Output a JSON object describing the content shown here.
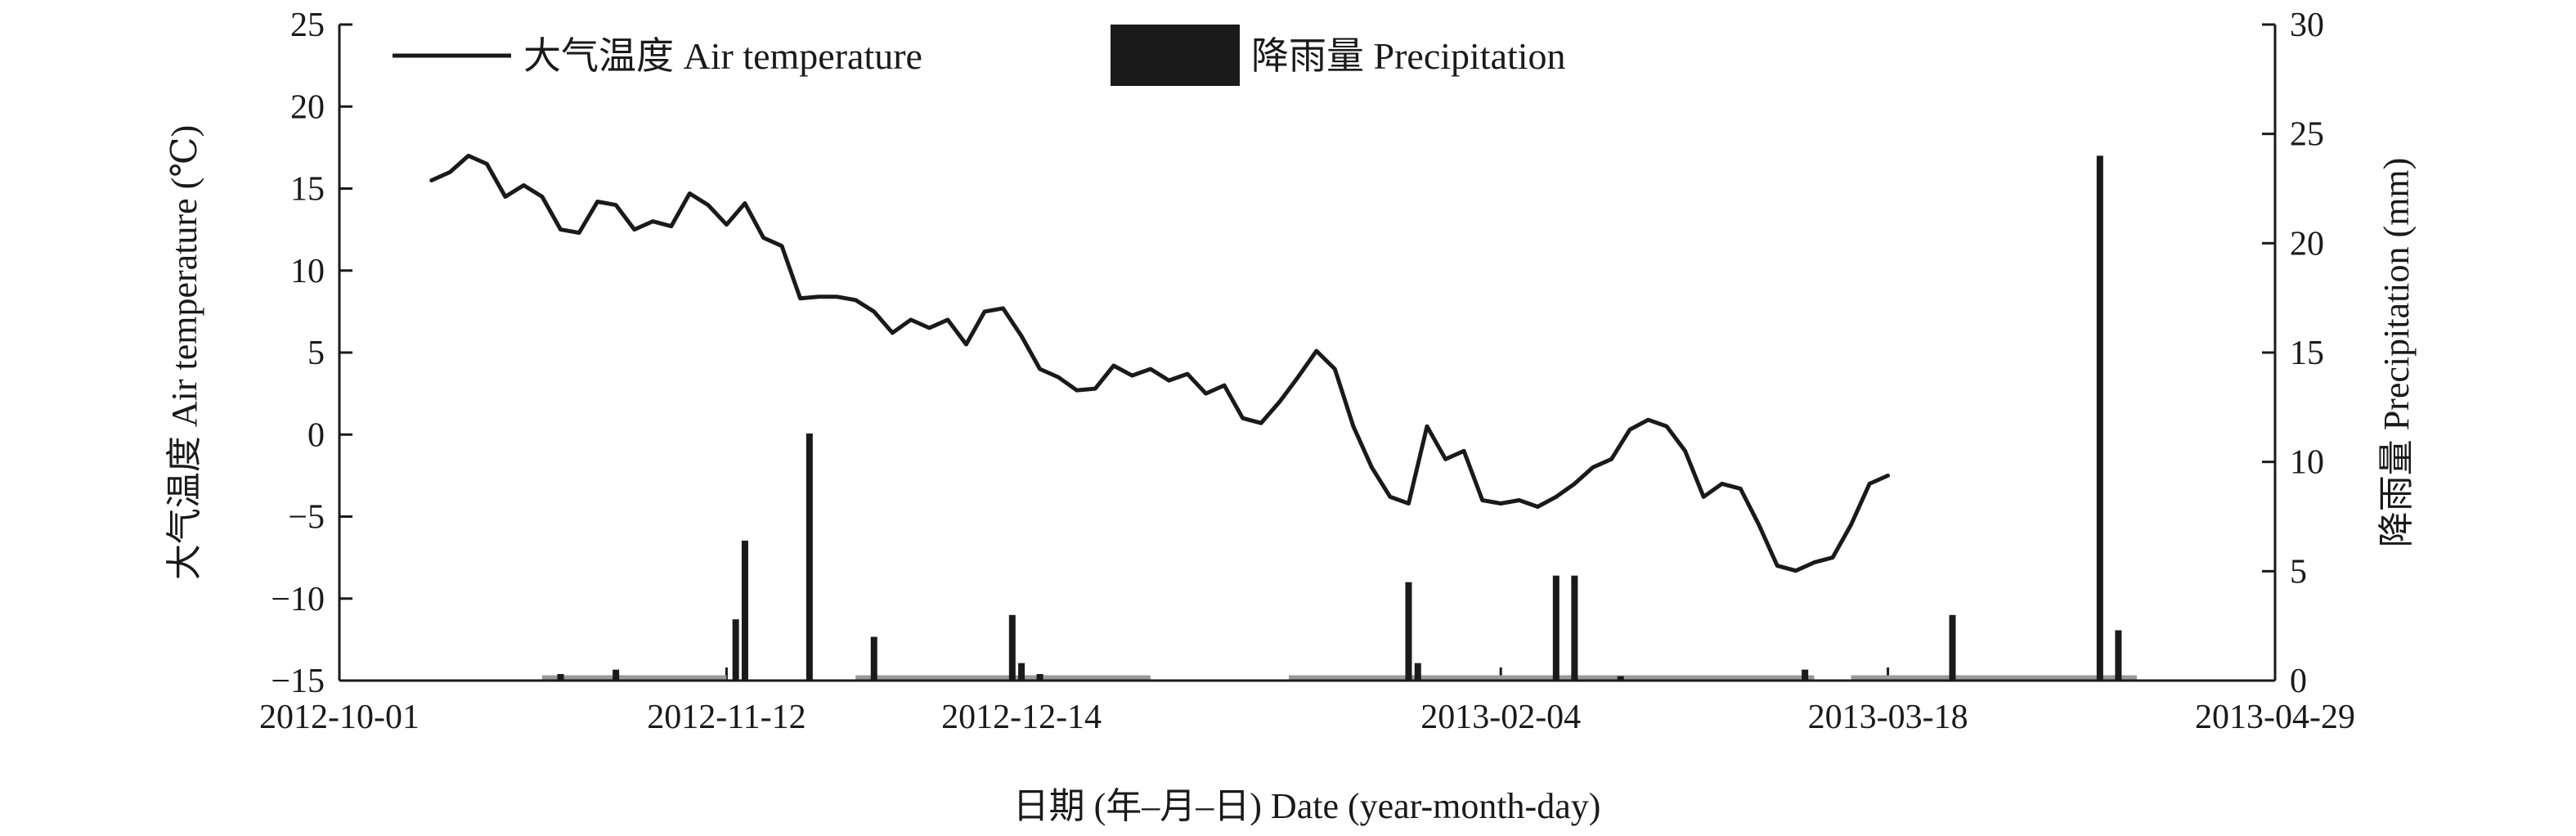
{
  "chart_data": {
    "type": "line",
    "x_type": "date",
    "x_ticks": [
      "2012-10-01",
      "2012-11-12",
      "2012-12-14",
      "2013-02-04",
      "2013-03-18",
      "2013-04-29"
    ],
    "xlim": [
      "2012-10-01",
      "2013-04-29"
    ],
    "xlabel": "日期 (年–月–日) Date (year-month-day)",
    "y_left": {
      "label": "大气温度 Air temperature (℃)",
      "ticks": [
        25,
        20,
        15,
        10,
        5,
        0,
        -5,
        -10,
        -15
      ],
      "tick_labels": [
        "25",
        "20",
        "15",
        "10",
        "5",
        "0",
        "−5",
        "−10",
        "−15"
      ],
      "ylim": [
        -15,
        25
      ]
    },
    "y_right": {
      "label": "降雨量 Precipitation (mm)",
      "ticks": [
        30,
        25,
        20,
        15,
        10,
        5,
        0
      ],
      "tick_labels": [
        "30",
        "25",
        "20",
        "15",
        "10",
        "5",
        "0"
      ],
      "ylim": [
        0,
        30
      ]
    },
    "legend": {
      "placement": "top-left",
      "items": [
        {
          "label": "大气温度 Air temperature",
          "kind": "line"
        },
        {
          "label": "降雨量 Precipitation",
          "kind": "bar"
        }
      ]
    },
    "grid": false,
    "colors": {
      "temperature": "#1a1a1a",
      "precipitation": "#1a1a1a",
      "zero_precip": "#9a9a9a"
    },
    "series": [
      {
        "id": "temperature",
        "axis": "left",
        "type": "line",
        "points": [
          [
            "2012-10-11",
            15.5
          ],
          [
            "2012-10-13",
            16.0
          ],
          [
            "2012-10-15",
            17.0
          ],
          [
            "2012-10-17",
            16.5
          ],
          [
            "2012-10-19",
            14.5
          ],
          [
            "2012-10-21",
            15.2
          ],
          [
            "2012-10-23",
            14.5
          ],
          [
            "2012-10-25",
            12.5
          ],
          [
            "2012-10-27",
            12.3
          ],
          [
            "2012-10-29",
            14.2
          ],
          [
            "2012-10-31",
            14.0
          ],
          [
            "2012-11-02",
            12.5
          ],
          [
            "2012-11-04",
            13.0
          ],
          [
            "2012-11-06",
            12.7
          ],
          [
            "2012-11-08",
            14.7
          ],
          [
            "2012-11-10",
            14.0
          ],
          [
            "2012-11-12",
            12.8
          ],
          [
            "2012-11-14",
            14.1
          ],
          [
            "2012-11-16",
            12.0
          ],
          [
            "2012-11-18",
            11.5
          ],
          [
            "2012-11-20",
            8.3
          ],
          [
            "2012-11-22",
            8.4
          ],
          [
            "2012-11-24",
            8.4
          ],
          [
            "2012-11-26",
            8.2
          ],
          [
            "2012-11-28",
            7.5
          ],
          [
            "2012-11-30",
            6.2
          ],
          [
            "2012-12-02",
            7.0
          ],
          [
            "2012-12-04",
            6.5
          ],
          [
            "2012-12-06",
            7.0
          ],
          [
            "2012-12-08",
            5.5
          ],
          [
            "2012-12-10",
            7.5
          ],
          [
            "2012-12-12",
            7.7
          ],
          [
            "2012-12-14",
            6.0
          ],
          [
            "2012-12-16",
            4.0
          ],
          [
            "2012-12-18",
            3.5
          ],
          [
            "2012-12-20",
            2.7
          ],
          [
            "2012-12-22",
            2.8
          ],
          [
            "2012-12-24",
            4.2
          ],
          [
            "2012-12-26",
            3.6
          ],
          [
            "2012-12-28",
            4.0
          ],
          [
            "2012-12-30",
            3.3
          ],
          [
            "2013-01-01",
            3.7
          ],
          [
            "2013-01-03",
            2.5
          ],
          [
            "2013-01-05",
            3.0
          ],
          [
            "2013-01-07",
            1.0
          ],
          [
            "2013-01-09",
            0.7
          ],
          [
            "2013-01-11",
            2.0
          ],
          [
            "2013-01-13",
            3.5
          ],
          [
            "2013-01-15",
            5.1
          ],
          [
            "2013-01-17",
            4.0
          ],
          [
            "2013-01-19",
            0.5
          ],
          [
            "2013-01-21",
            -2.0
          ],
          [
            "2013-01-23",
            -3.8
          ],
          [
            "2013-01-25",
            -4.2
          ],
          [
            "2013-01-27",
            0.5
          ],
          [
            "2013-01-29",
            -1.5
          ],
          [
            "2013-01-31",
            -1.0
          ],
          [
            "2013-02-02",
            -4.0
          ],
          [
            "2013-02-04",
            -4.2
          ],
          [
            "2013-02-06",
            -4.0
          ],
          [
            "2013-02-08",
            -4.4
          ],
          [
            "2013-02-10",
            -3.8
          ],
          [
            "2013-02-12",
            -3.0
          ],
          [
            "2013-02-14",
            -2.0
          ],
          [
            "2013-02-16",
            -1.5
          ],
          [
            "2013-02-18",
            0.3
          ],
          [
            "2013-02-20",
            0.9
          ],
          [
            "2013-02-22",
            0.5
          ],
          [
            "2013-02-24",
            -1.0
          ],
          [
            "2013-02-26",
            -3.8
          ],
          [
            "2013-02-28",
            -3.0
          ],
          [
            "2013-03-02",
            -3.3
          ],
          [
            "2013-03-04",
            -5.5
          ],
          [
            "2013-03-06",
            -8.0
          ],
          [
            "2013-03-08",
            -8.3
          ],
          [
            "2013-03-10",
            -7.8
          ],
          [
            "2013-03-12",
            -7.5
          ],
          [
            "2013-03-14",
            -5.5
          ],
          [
            "2013-03-16",
            -3.0
          ],
          [
            "2013-03-18",
            -2.5
          ]
        ]
      },
      {
        "id": "precipitation",
        "axis": "right",
        "type": "bar",
        "points": [
          [
            "2012-10-25",
            0.3
          ],
          [
            "2012-10-31",
            0.5
          ],
          [
            "2012-11-13",
            2.8
          ],
          [
            "2012-11-14",
            6.4
          ],
          [
            "2012-11-21",
            11.3
          ],
          [
            "2012-11-28",
            2.0
          ],
          [
            "2012-12-13",
            3.0
          ],
          [
            "2012-12-14",
            0.8
          ],
          [
            "2012-12-16",
            0.3
          ],
          [
            "2013-01-25",
            4.5
          ],
          [
            "2013-01-26",
            0.8
          ],
          [
            "2013-02-10",
            4.8
          ],
          [
            "2013-02-12",
            4.8
          ],
          [
            "2013-02-17",
            0.2
          ],
          [
            "2013-03-09",
            0.5
          ],
          [
            "2013-03-25",
            3.0
          ],
          [
            "2013-04-10",
            24.0
          ],
          [
            "2013-04-12",
            2.3
          ]
        ]
      }
    ]
  }
}
